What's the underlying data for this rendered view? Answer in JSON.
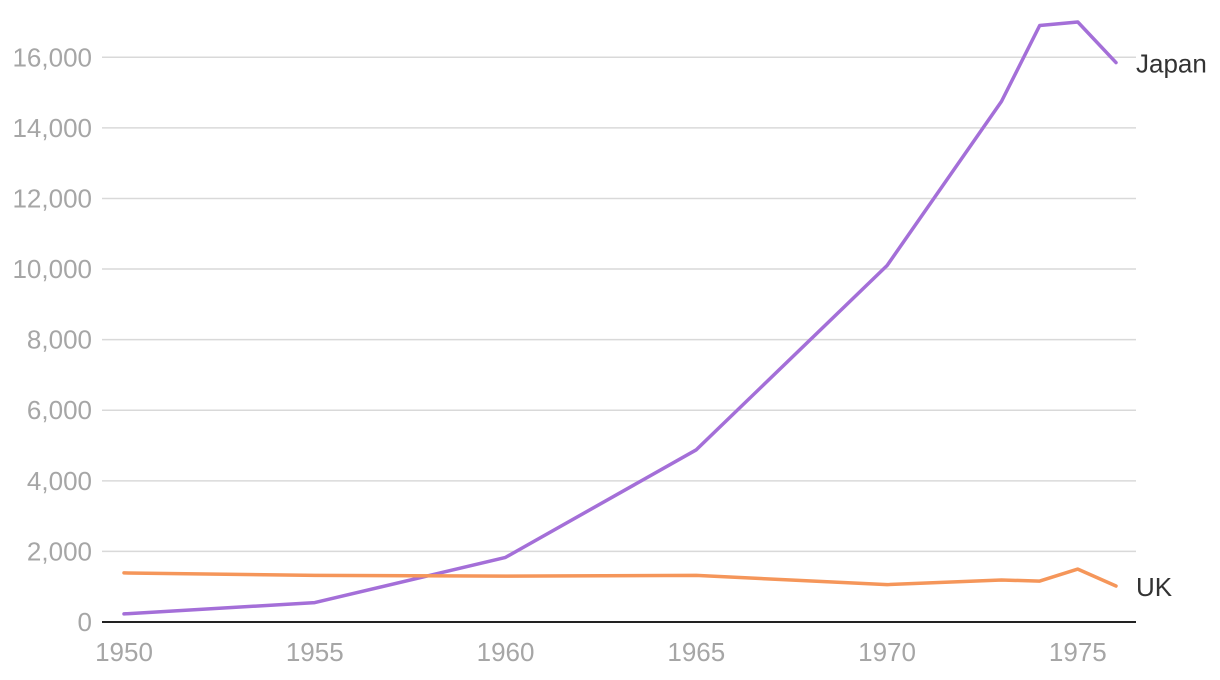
{
  "chart_data": {
    "type": "line",
    "title": "",
    "xlabel": "",
    "ylabel": "",
    "xlim": [
      1950,
      1976
    ],
    "ylim": [
      0,
      17000
    ],
    "grid": true,
    "legend": "inline-right-end",
    "x_ticks": [
      "1950",
      "1955",
      "1960",
      "1965",
      "1970",
      "1975"
    ],
    "y_ticks": [
      "0",
      "2,000",
      "4,000",
      "6,000",
      "8,000",
      "10,000",
      "12,000",
      "14,000",
      "16,000"
    ],
    "series": [
      {
        "name": "Japan",
        "color": "#a46fd8",
        "x": [
          1950,
          1955,
          1960,
          1965,
          1970,
          1973,
          1974,
          1975,
          1976
        ],
        "y": [
          230,
          550,
          1830,
          4880,
          10100,
          14750,
          16900,
          17000,
          15850
        ]
      },
      {
        "name": "UK",
        "color": "#f5965a",
        "x": [
          1950,
          1955,
          1960,
          1965,
          1970,
          1973,
          1974,
          1975,
          1976
        ],
        "y": [
          1390,
          1320,
          1300,
          1320,
          1060,
          1190,
          1160,
          1500,
          1020
        ]
      }
    ]
  }
}
